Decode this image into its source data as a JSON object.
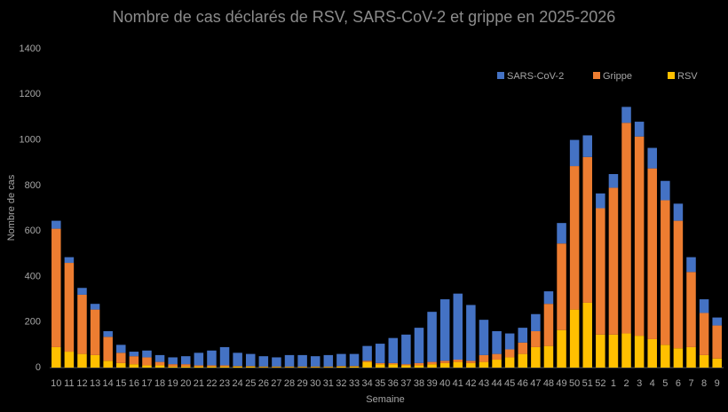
{
  "chart_data": {
    "type": "stacked_bar",
    "title": "Nombre de cas déclarés de RSV, SARS-CoV-2 et grippe en 2025-2026",
    "x_label": "Semaine",
    "y_label": "Nombre de cas",
    "categories": [
      "10",
      "11",
      "12",
      "13",
      "14",
      "15",
      "16",
      "17",
      "18",
      "19",
      "20",
      "21",
      "22",
      "23",
      "24",
      "25",
      "26",
      "27",
      "28",
      "29",
      "30",
      "31",
      "32",
      "33",
      "34",
      "35",
      "36",
      "37",
      "38",
      "39",
      "40",
      "41",
      "42",
      "43",
      "44",
      "45",
      "46",
      "47",
      "48",
      "49",
      "50",
      "51",
      "52",
      "1",
      "2",
      "3",
      "4",
      "5",
      "6",
      "7",
      "8",
      "9"
    ],
    "series": [
      {
        "name": "RSV",
        "color": "#ffc000",
        "values": [
          90,
          70,
          60,
          55,
          30,
          20,
          15,
          10,
          10,
          5,
          5,
          5,
          5,
          5,
          5,
          5,
          3,
          3,
          3,
          3,
          3,
          3,
          5,
          5,
          25,
          15,
          15,
          10,
          10,
          15,
          20,
          25,
          20,
          25,
          35,
          45,
          60,
          90,
          95,
          165,
          255,
          285,
          145,
          145,
          150,
          140,
          125,
          100,
          85,
          90,
          55,
          40
        ]
      },
      {
        "name": "Grippe",
        "color": "#ed7d31",
        "values": [
          520,
          390,
          260,
          200,
          105,
          45,
          35,
          35,
          15,
          10,
          10,
          5,
          5,
          5,
          2,
          2,
          2,
          2,
          2,
          2,
          2,
          2,
          2,
          2,
          5,
          5,
          5,
          5,
          10,
          10,
          10,
          10,
          10,
          30,
          25,
          35,
          50,
          70,
          185,
          380,
          630,
          640,
          555,
          645,
          925,
          875,
          750,
          635,
          560,
          330,
          185,
          145
        ]
      },
      {
        "name": "SARS-CoV-2",
        "color": "#4472c4",
        "values": [
          35,
          25,
          30,
          25,
          25,
          35,
          20,
          30,
          30,
          30,
          35,
          55,
          65,
          80,
          58,
          53,
          45,
          40,
          50,
          50,
          45,
          50,
          53,
          53,
          65,
          85,
          110,
          130,
          155,
          220,
          270,
          290,
          245,
          155,
          100,
          70,
          65,
          75,
          55,
          90,
          115,
          95,
          65,
          60,
          70,
          65,
          90,
          85,
          75,
          65,
          60,
          35
        ]
      }
    ],
    "legend_order": [
      2,
      1,
      0
    ],
    "ylim": [
      0,
      1400
    ],
    "yticks": [
      0,
      200,
      400,
      600,
      800,
      1000,
      1200,
      1400
    ],
    "grid": false,
    "legend": "top-right"
  }
}
